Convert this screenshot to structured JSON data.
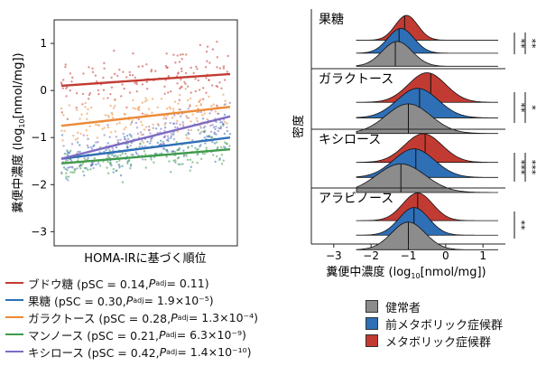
{
  "chart_data": [
    {
      "type": "scatter",
      "xlabel": "HOMA-IRに基づく順位",
      "ylabel_main": "糞便中濃度 (log",
      "ylabel_sub": "10",
      "ylabel_unit": "[nmol/mg])",
      "ylim": [
        -3.3,
        1.5
      ],
      "yticks": [
        "1",
        "0",
        "−1",
        "−2",
        "−3"
      ],
      "ytick_values": [
        1,
        0,
        -1,
        -2,
        -3
      ],
      "series": [
        {
          "name": "ブドウ糖",
          "color": "#c23b33",
          "line": [
            0.1,
            0.35
          ],
          "center": 0.22,
          "spread": 0.75,
          "label_text": "ブドウ糖 (pSC = 0.14, ",
          "p_label": "P",
          "p_sub": "adj",
          "p_value": " = 0.11)"
        },
        {
          "name": "果糖",
          "color": "#2e6fb6",
          "line": [
            -1.45,
            -1.0
          ],
          "center": -1.2,
          "spread": 0.6,
          "label_text": "果糖 (pSC = 0.30, ",
          "p_label": "P",
          "p_sub": "adj",
          "p_value": " = 1.9×10⁻⁵)"
        },
        {
          "name": "ガラクトース",
          "color": "#ec8a37",
          "line": [
            -0.75,
            -0.35
          ],
          "center": -0.55,
          "spread": 0.65,
          "label_text": "ガラクトース (pSC = 0.28, ",
          "p_label": "P",
          "p_sub": "adj",
          "p_value": " = 1.3×10⁻⁴)"
        },
        {
          "name": "マンノース",
          "color": "#3f9b4a",
          "line": [
            -1.55,
            -1.25
          ],
          "center": -1.4,
          "spread": 0.55,
          "label_text": "マンノース (pSC = 0.21, ",
          "p_label": "P",
          "p_sub": "adj",
          "p_value": " = 6.3×10⁻⁹)"
        },
        {
          "name": "キシロース",
          "color": "#7d6bc2",
          "line": [
            -1.45,
            -0.55
          ],
          "center": -1.05,
          "spread": 0.6,
          "label_text": "キシロース (pSC = 0.42, ",
          "p_label": "P",
          "p_sub": "adj",
          "p_value": " = 1.4×10⁻¹⁰)"
        }
      ]
    },
    {
      "type": "ridgeline",
      "ylabel": "密度",
      "xlabel_main": "糞便中濃度 (log",
      "xlabel_sub": "10",
      "xlabel_unit": "[nmol/mg])",
      "xlim": [
        -3.6,
        1.6
      ],
      "xticks": [
        "−3",
        "−2",
        "−1",
        "0",
        "1"
      ],
      "xtick_values": [
        -3,
        -2,
        -1,
        0,
        1
      ],
      "groups": [
        {
          "name": "果糖",
          "significance": [
            {
              "label": "**",
              "rows": [
                "健常者",
                "メタボリック症候群"
              ]
            },
            {
              "label": "**",
              "rows": [
                "前メタボリック症候群",
                "メタボリック症候群"
              ]
            }
          ],
          "ridges": {
            "metabolic": {
              "mean": -1.05,
              "sd": 0.3,
              "median": -1.1
            },
            "premetabolic": {
              "mean": -1.2,
              "sd": 0.35,
              "median": -1.25
            },
            "healthy": {
              "mean": -1.3,
              "sd": 0.4,
              "median": -1.35
            }
          }
        },
        {
          "name": "ガラクトース",
          "significance": [
            {
              "label": "**",
              "rows": [
                "健常者",
                "メタボリック症候群"
              ]
            },
            {
              "label": "*",
              "rows": [
                "前メタボリック症候群",
                "メタボリック症候群"
              ]
            }
          ],
          "ridges": {
            "metabolic": {
              "mean": -0.5,
              "sd": 0.5,
              "median": -0.4
            },
            "premetabolic": {
              "mean": -0.75,
              "sd": 0.55,
              "median": -0.7
            },
            "healthy": {
              "mean": -1.0,
              "sd": 0.6,
              "median": -1.0
            }
          }
        },
        {
          "name": "キシロース",
          "significance": [
            {
              "label": "***",
              "rows": [
                "健常者",
                "メタボリック症候群"
              ]
            },
            {
              "label": "***",
              "rows": [
                "前メタボリック症候群",
                "メタボリック症候群"
              ]
            }
          ],
          "ridges": {
            "metabolic": {
              "mean": -0.6,
              "sd": 0.5,
              "median": -0.55
            },
            "premetabolic": {
              "mean": -0.85,
              "sd": 0.55,
              "median": -0.8
            },
            "healthy": {
              "mean": -1.2,
              "sd": 0.65,
              "median": -1.2
            }
          }
        },
        {
          "name": "アラビノース",
          "significance": [
            {
              "label": "**",
              "rows": [
                "健常者",
                "メタボリック症候群"
              ]
            }
          ],
          "ridges": {
            "metabolic": {
              "mean": -0.75,
              "sd": 0.4,
              "median": -0.75
            },
            "premetabolic": {
              "mean": -0.85,
              "sd": 0.4,
              "median": -0.85
            },
            "healthy": {
              "mean": -1.0,
              "sd": 0.45,
              "median": -1.0
            }
          }
        }
      ],
      "legend": [
        {
          "key": "healthy",
          "label": "健常者",
          "color": "#8c8c8c"
        },
        {
          "key": "premetabolic",
          "label": "前メタボリック症候群",
          "color": "#2e6fb6"
        },
        {
          "key": "metabolic",
          "label": "メタボリック症候群",
          "color": "#c23b33"
        }
      ]
    }
  ]
}
